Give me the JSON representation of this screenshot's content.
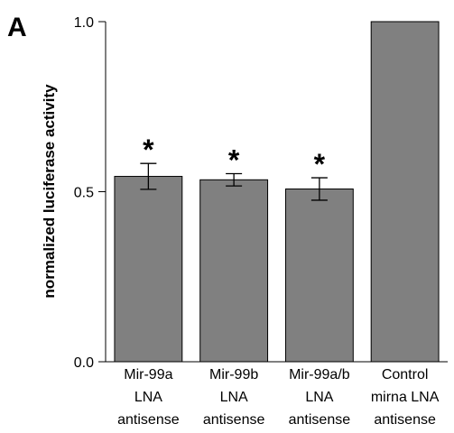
{
  "chart_data": {
    "type": "bar",
    "panel_label": "A",
    "ylabel": "normalized luciferase activity",
    "xlabel": "",
    "ylim": [
      0,
      1.0
    ],
    "yticks": [
      {
        "value": 0.0,
        "label": "0.0"
      },
      {
        "value": 0.5,
        "label": "0.5"
      },
      {
        "value": 1.0,
        "label": "1.0"
      }
    ],
    "categories": [
      [
        "Mir-99a",
        "LNA",
        "antisense"
      ],
      [
        "Mir-99b",
        "LNA",
        "antisense"
      ],
      [
        "Mir-99a/b",
        "LNA",
        "antisense"
      ],
      [
        "Control",
        "mirna LNA",
        "antisense"
      ]
    ],
    "values": [
      0.545,
      0.535,
      0.508,
      1.0
    ],
    "errors": [
      0.038,
      0.018,
      0.033,
      0
    ],
    "significance": [
      "*",
      "*",
      "*",
      ""
    ],
    "bar_color": "#808080",
    "grid": false,
    "legend": "none"
  }
}
